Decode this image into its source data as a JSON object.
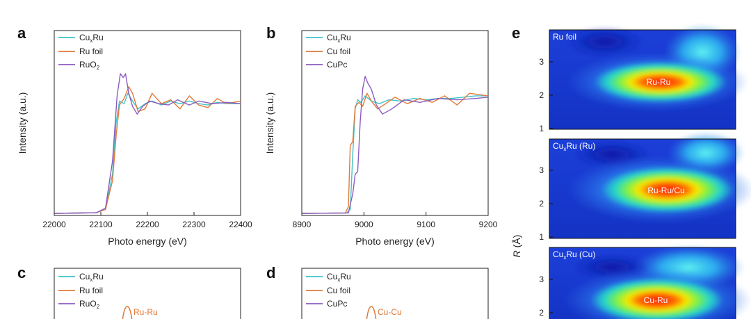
{
  "colors": {
    "cuxru": "#3ec3c9",
    "ref1": "#e07a3a",
    "ref2": "#8a5cc0",
    "axis": "#222222",
    "map_label": "#ffffff"
  },
  "chart_data": [
    {
      "id": "a",
      "type": "line",
      "panel_label": "a",
      "xlabel": "Photo energy (eV)",
      "ylabel": "Intensity (a.u.)",
      "xlim": [
        22000,
        22400
      ],
      "ylim": [
        0,
        1.4
      ],
      "xticks": [
        "22000",
        "22100",
        "22200",
        "22300",
        "22400"
      ],
      "legend": [
        {
          "prefix": "Cu",
          "sub": "x",
          "suffix": "Ru"
        },
        {
          "prefix": "Ru foil",
          "sub": "",
          "suffix": ""
        },
        {
          "prefix": "RuO",
          "sub": "2",
          "suffix": ""
        }
      ],
      "series": [
        {
          "name": "CuxRu",
          "x": [
            22000,
            22090,
            22110,
            22125,
            22133,
            22140,
            22150,
            22158,
            22168,
            22180,
            22195,
            22210,
            22230,
            22250,
            22270,
            22290,
            22310,
            22330,
            22350,
            22370,
            22400
          ],
          "y": [
            0.0,
            0.005,
            0.03,
            0.3,
            0.7,
            0.86,
            0.84,
            0.92,
            0.86,
            0.8,
            0.84,
            0.86,
            0.83,
            0.86,
            0.84,
            0.86,
            0.84,
            0.83,
            0.85,
            0.84,
            0.84
          ]
        },
        {
          "name": "Ru foil",
          "x": [
            22000,
            22090,
            22110,
            22125,
            22133,
            22140,
            22150,
            22160,
            22168,
            22180,
            22195,
            22210,
            22230,
            22250,
            22270,
            22290,
            22310,
            22330,
            22350,
            22370,
            22400
          ],
          "y": [
            0.0,
            0.005,
            0.03,
            0.25,
            0.6,
            0.83,
            0.88,
            0.97,
            0.92,
            0.78,
            0.8,
            0.92,
            0.84,
            0.87,
            0.8,
            0.9,
            0.83,
            0.81,
            0.88,
            0.84,
            0.86
          ]
        },
        {
          "name": "RuO2",
          "x": [
            22000,
            22090,
            22110,
            22125,
            22135,
            22142,
            22148,
            22153,
            22160,
            22168,
            22178,
            22190,
            22205,
            22225,
            22245,
            22265,
            22290,
            22310,
            22340,
            22370,
            22400
          ],
          "y": [
            0.0,
            0.005,
            0.04,
            0.4,
            0.9,
            1.07,
            1.04,
            1.07,
            0.92,
            0.82,
            0.76,
            0.82,
            0.86,
            0.84,
            0.83,
            0.87,
            0.83,
            0.86,
            0.84,
            0.85,
            0.84
          ]
        }
      ]
    },
    {
      "id": "b",
      "type": "line",
      "panel_label": "b",
      "xlabel": "Photo energy (eV)",
      "ylabel": "Intensity (a.u.)",
      "xlim": [
        8900,
        9200
      ],
      "ylim": [
        0,
        1.4
      ],
      "xticks": [
        "8900",
        "9000",
        "9100",
        "9200"
      ],
      "legend": [
        {
          "prefix": "Cu",
          "sub": "x",
          "suffix": "Ru"
        },
        {
          "prefix": "Cu foil",
          "sub": "",
          "suffix": ""
        },
        {
          "prefix": "CuPc",
          "sub": "",
          "suffix": ""
        }
      ],
      "series": [
        {
          "name": "CuxRu",
          "x": [
            8900,
            8972,
            8978,
            8982,
            8986,
            8990,
            8995,
            9002,
            9012,
            9025,
            9040,
            9060,
            9080,
            9100,
            9120,
            9140,
            9160,
            9180,
            9200
          ],
          "y": [
            0.0,
            0.003,
            0.03,
            0.45,
            0.8,
            0.87,
            0.85,
            0.9,
            0.86,
            0.84,
            0.87,
            0.86,
            0.88,
            0.87,
            0.88,
            0.88,
            0.89,
            0.9,
            0.9
          ]
        },
        {
          "name": "Cu foil",
          "x": [
            8900,
            8970,
            8975,
            8978,
            8982,
            8986,
            8992,
            8998,
            9005,
            9012,
            9022,
            9035,
            9050,
            9070,
            9090,
            9110,
            9130,
            9150,
            9170,
            9200
          ],
          "y": [
            0.0,
            0.003,
            0.05,
            0.52,
            0.55,
            0.82,
            0.85,
            0.82,
            0.92,
            0.86,
            0.8,
            0.84,
            0.89,
            0.84,
            0.88,
            0.85,
            0.9,
            0.83,
            0.92,
            0.9
          ]
        },
        {
          "name": "CuPc",
          "x": [
            8900,
            8975,
            8982,
            8986,
            8990,
            8994,
            8998,
            9002,
            9006,
            9012,
            9020,
            9030,
            9045,
            9065,
            9090,
            9120,
            9150,
            9180,
            9200
          ],
          "y": [
            0.0,
            0.003,
            0.15,
            0.3,
            0.32,
            0.7,
            0.95,
            1.05,
            1.0,
            0.95,
            0.83,
            0.76,
            0.8,
            0.87,
            0.85,
            0.88,
            0.87,
            0.88,
            0.89
          ]
        }
      ]
    },
    {
      "id": "c",
      "type": "line",
      "panel_label": "c",
      "legend": [
        {
          "prefix": "Cu",
          "sub": "x",
          "suffix": "Ru"
        },
        {
          "prefix": "Ru foil",
          "sub": "",
          "suffix": ""
        },
        {
          "prefix": "RuO",
          "sub": "2",
          "suffix": ""
        }
      ],
      "annotation": "Ru-Ru"
    },
    {
      "id": "d",
      "type": "line",
      "panel_label": "d",
      "legend": [
        {
          "prefix": "Cu",
          "sub": "x",
          "suffix": "Ru"
        },
        {
          "prefix": "Cu foil",
          "sub": "",
          "suffix": ""
        },
        {
          "prefix": "CuPc",
          "sub": "",
          "suffix": ""
        }
      ],
      "annotation": "Cu-Cu"
    },
    {
      "id": "e",
      "type": "heatmap",
      "panel_label": "e",
      "ylabel_var": "R",
      "ylabel_unit": " (Å)",
      "subpanels": [
        {
          "title": {
            "prefix": "Ru foil",
            "sub": "",
            "suffix": ""
          },
          "yticks": [
            "1",
            "2",
            "3"
          ],
          "peak_label": "Ru-Ru"
        },
        {
          "title": {
            "prefix": "Cu",
            "sub": "x",
            "suffix": "Ru (Ru)"
          },
          "yticks": [
            "1",
            "2",
            "3"
          ],
          "peak_label": "Ru-Ru/Cu"
        },
        {
          "title": {
            "prefix": "Cu",
            "sub": "x",
            "suffix": "Ru (Cu)"
          },
          "yticks": [
            "2",
            "3"
          ],
          "peak_label": "Cu-Ru"
        }
      ]
    }
  ]
}
